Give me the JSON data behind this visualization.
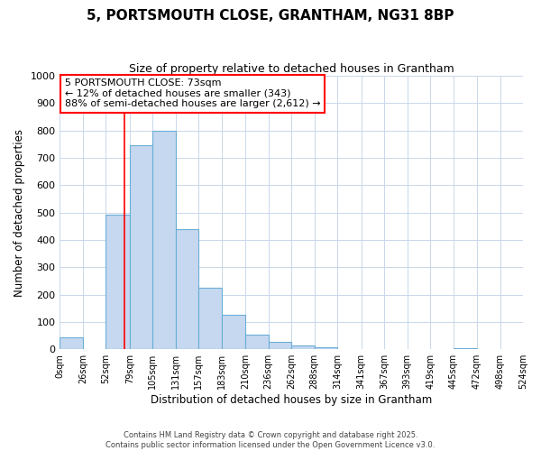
{
  "title": "5, PORTSMOUTH CLOSE, GRANTHAM, NG31 8BP",
  "subtitle": "Size of property relative to detached houses in Grantham",
  "xlabel": "Distribution of detached houses by size in Grantham",
  "ylabel": "Number of detached properties",
  "bar_lefts": [
    0,
    26,
    52,
    79,
    105,
    131,
    157,
    183,
    210,
    236,
    262,
    288,
    314,
    341,
    367,
    393,
    419,
    445,
    472,
    498
  ],
  "bar_widths": [
    26,
    26,
    27,
    26,
    26,
    26,
    26,
    27,
    26,
    26,
    26,
    26,
    27,
    26,
    26,
    26,
    26,
    27,
    26,
    26
  ],
  "bar_heights": [
    42,
    0,
    493,
    748,
    800,
    440,
    225,
    125,
    52,
    28,
    15,
    8,
    0,
    0,
    0,
    0,
    0,
    3,
    0,
    0
  ],
  "bar_color": "#c5d8f0",
  "bar_edge_color": "#6aaed6",
  "property_line_x": 73,
  "property_line_color": "red",
  "annotation_text_line1": "5 PORTSMOUTH CLOSE: 73sqm",
  "annotation_text_line2": "← 12% of detached houses are smaller (343)",
  "annotation_text_line3": "88% of semi-detached houses are larger (2,612) →",
  "annotation_box_color": "white",
  "annotation_box_edge_color": "red",
  "ylim": [
    0,
    1000
  ],
  "xlim": [
    0,
    524
  ],
  "tick_positions": [
    0,
    26,
    52,
    79,
    105,
    131,
    157,
    183,
    210,
    236,
    262,
    288,
    314,
    341,
    367,
    393,
    419,
    445,
    472,
    498,
    524
  ],
  "tick_labels": [
    "0sqm",
    "26sqm",
    "52sqm",
    "79sqm",
    "105sqm",
    "131sqm",
    "157sqm",
    "183sqm",
    "210sqm",
    "236sqm",
    "262sqm",
    "288sqm",
    "314sqm",
    "341sqm",
    "367sqm",
    "393sqm",
    "419sqm",
    "445sqm",
    "472sqm",
    "498sqm",
    "524sqm"
  ],
  "ytick_positions": [
    0,
    100,
    200,
    300,
    400,
    500,
    600,
    700,
    800,
    900,
    1000
  ],
  "footer_line1": "Contains HM Land Registry data © Crown copyright and database right 2025.",
  "footer_line2": "Contains public sector information licensed under the Open Government Licence v3.0.",
  "background_color": "#ffffff",
  "grid_color": "#c8d8ea"
}
